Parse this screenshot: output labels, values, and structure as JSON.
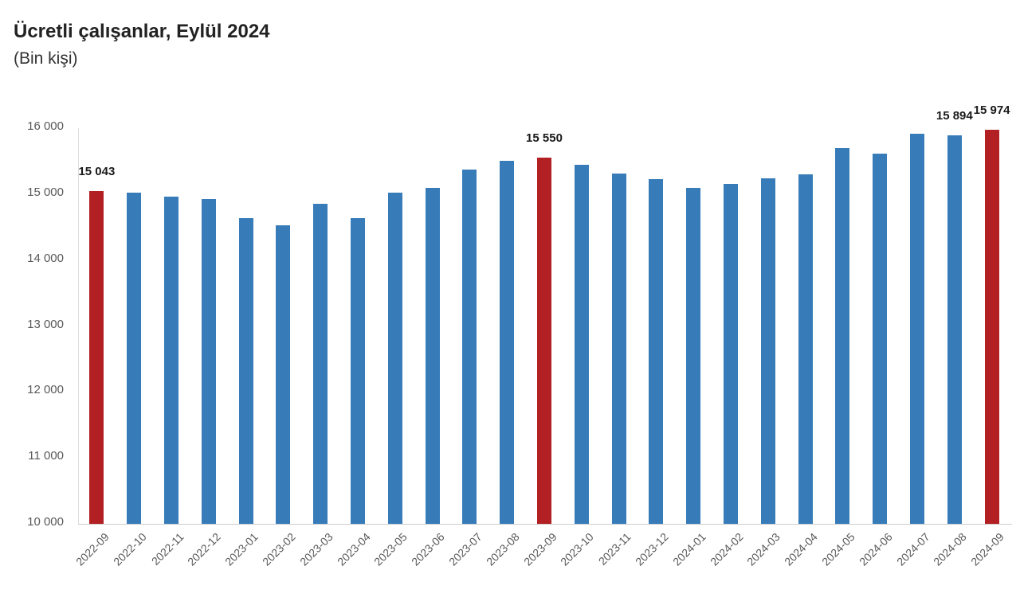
{
  "title": "Ücretli çalışanlar, Eylül 2024",
  "subtitle": "(Bin kişi)",
  "chart_data": {
    "type": "bar",
    "title": "Ücretli çalışanlar, Eylül 2024",
    "unit_label": "(Bin kişi)",
    "xlabel": "",
    "ylabel": "",
    "ylim": [
      10000,
      16000
    ],
    "ytick_step": 1000,
    "ytick_labels": [
      "10 000",
      "11 000",
      "12 000",
      "13 000",
      "14 000",
      "15 000",
      "16 000"
    ],
    "grid": false,
    "legend": false,
    "categories": [
      "2022-09",
      "2022-10",
      "2022-11",
      "2022-12",
      "2023-01",
      "2023-02",
      "2023-03",
      "2023-04",
      "2023-05",
      "2023-06",
      "2023-07",
      "2023-08",
      "2023-09",
      "2023-10",
      "2023-11",
      "2023-12",
      "2024-01",
      "2024-02",
      "2024-03",
      "2024-04",
      "2024-05",
      "2024-06",
      "2024-07",
      "2024-08",
      "2024-09"
    ],
    "series": [
      {
        "name": "Ücretli çalışanlar",
        "values": [
          15043,
          15020,
          14960,
          14930,
          14640,
          14530,
          14850,
          14630,
          15020,
          15090,
          15370,
          15500,
          15550,
          15450,
          15310,
          15230,
          15100,
          15150,
          15240,
          15300,
          15700,
          15610,
          15910,
          15894,
          15974
        ]
      }
    ],
    "highlight_flags": [
      true,
      false,
      false,
      false,
      false,
      false,
      false,
      false,
      false,
      false,
      false,
      false,
      true,
      false,
      false,
      false,
      false,
      false,
      false,
      false,
      false,
      false,
      false,
      false,
      true
    ],
    "data_labels": [
      "15 043",
      null,
      null,
      null,
      null,
      null,
      null,
      null,
      null,
      null,
      null,
      null,
      "15 550",
      null,
      null,
      null,
      null,
      null,
      null,
      null,
      null,
      null,
      null,
      "15 894",
      "15 974"
    ],
    "colors": {
      "bar": "#377CB8",
      "highlight": "#B22024",
      "axis_line": "#DEDEDE",
      "tick_text": "#595959",
      "data_label_text": "#1A1A1A"
    }
  }
}
